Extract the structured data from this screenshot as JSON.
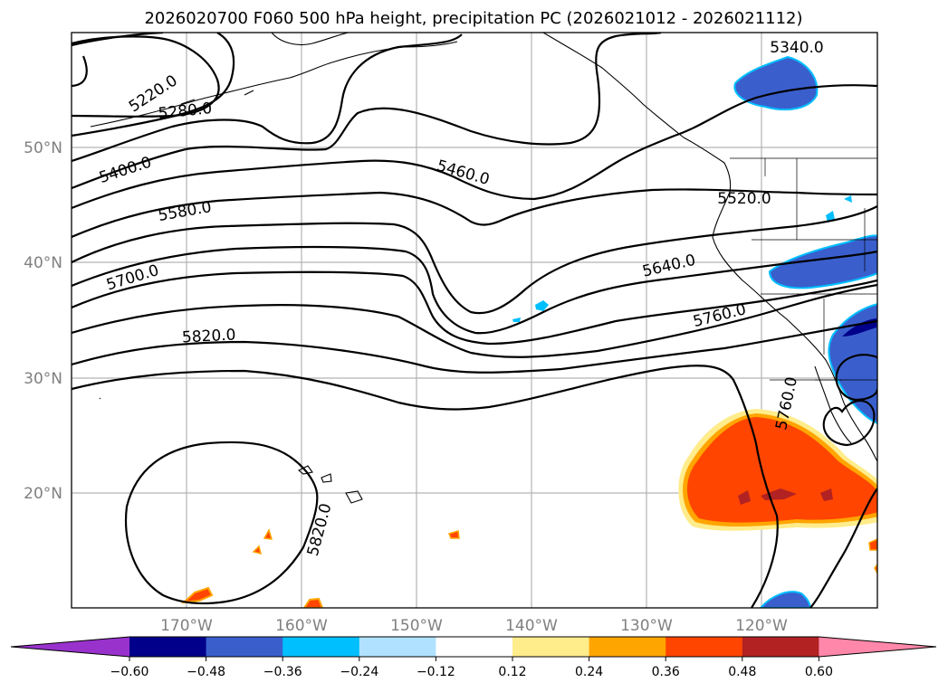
{
  "title": "2026020700 F060 500 hPa height, precipitation PC (2026021012 - 2026021112)",
  "lon_labels": [
    "170°W",
    "160°W",
    "150°W",
    "140°W",
    "130°W",
    "120°W"
  ],
  "lat_labels": [
    "50°N",
    "40°N",
    "30°N",
    "20°N"
  ],
  "contour_labels": [
    "5220.0",
    "5280.0",
    "5340.0",
    "5400.0",
    "5460.0",
    "5520.0",
    "5580.0",
    "5640.0",
    "5700.0",
    "5760.0",
    "5820.0",
    "5760.0",
    "5820.0"
  ],
  "colorbar": {
    "ticks": [
      "−0.60",
      "−0.48",
      "−0.36",
      "−0.24",
      "−0.12",
      "0.12",
      "0.24",
      "0.36",
      "0.48",
      "0.60"
    ],
    "colors": [
      "#9932cc",
      "#00008b",
      "#3a5fcd",
      "#00bfff",
      "#b0e2ff",
      "#ffffff",
      "#ffec8b",
      "#ffa500",
      "#ff4500",
      "#b22222",
      "#ff88aa"
    ]
  }
}
